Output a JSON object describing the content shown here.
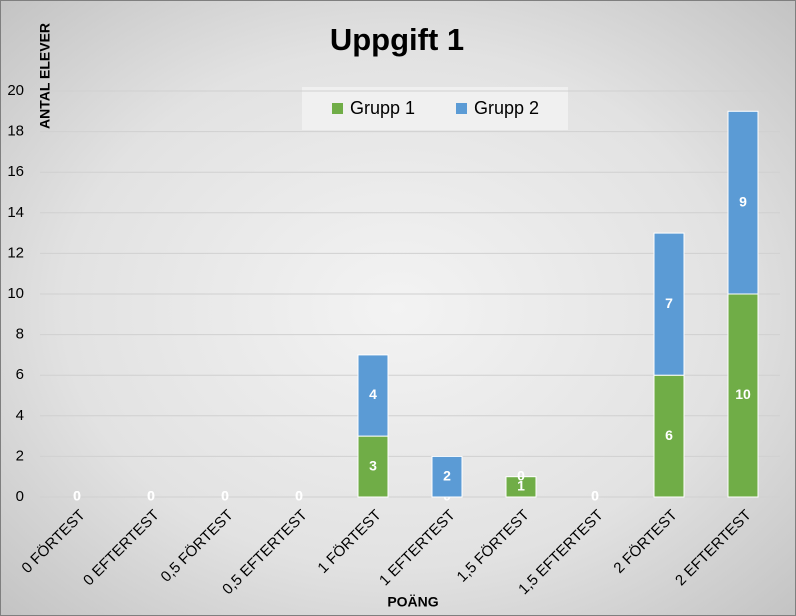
{
  "chart_data": {
    "type": "bar",
    "stacked": true,
    "title": "Uppgift 1",
    "y_label": "ANTAL ELEVER",
    "x_label": "POÄNG",
    "categories": [
      "0 FÖRTEST",
      "0 EFTERTEST",
      "0,5 FÖRTEST",
      "0,5 EFTERTEST",
      "1 FÖRTEST",
      "1 EFTERTEST",
      "1,5 FÖRTEST",
      "1,5 EFTERTEST",
      "2 FÖRTEST",
      "2 EFTERTEST"
    ],
    "series": [
      {
        "name": "Grupp 1",
        "color": "#70ad47",
        "values": [
          0,
          0,
          0,
          0,
          3,
          0,
          1,
          0,
          6,
          10
        ]
      },
      {
        "name": "Grupp 2",
        "color": "#5b9bd5",
        "values": [
          0,
          0,
          0,
          0,
          4,
          2,
          0,
          0,
          7,
          9
        ]
      }
    ],
    "ylim": [
      0,
      20
    ],
    "yticks": [
      0,
      2,
      4,
      6,
      8,
      10,
      12,
      14,
      16,
      18,
      20
    ],
    "grid": true,
    "legend": "top"
  }
}
